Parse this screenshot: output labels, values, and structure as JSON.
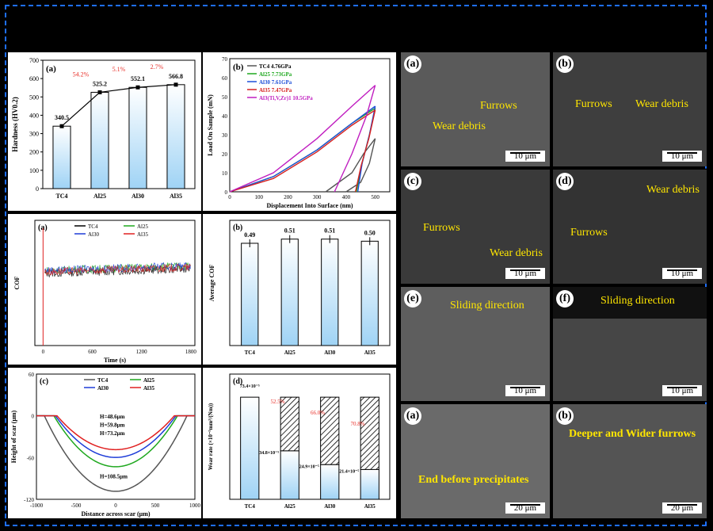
{
  "chart_data": [
    {
      "type": "bar",
      "panel_label": "(a)",
      "ylabel": "Hardness (HV0.2)",
      "categories": [
        "TC4",
        "Al25",
        "Al30",
        "Al35"
      ],
      "values": [
        340.5,
        525.2,
        552.1,
        566.8
      ],
      "value_labels": [
        "340.5",
        "525.2",
        "552.1",
        "566.8"
      ],
      "increase_labels": [
        "54.2%",
        "5.1%",
        "2.7%"
      ],
      "ylim": [
        0,
        700
      ],
      "yticks": [
        0,
        100,
        200,
        300,
        400,
        500,
        600,
        700
      ]
    },
    {
      "type": "line",
      "panel_label": "(b)",
      "xlabel": "Displacement Into Surface (nm)",
      "ylabel": "Load On Sample (mN)",
      "xlim": [
        0,
        550
      ],
      "ylim": [
        0,
        70
      ],
      "xticks": [
        0,
        100,
        200,
        300,
        400,
        500
      ],
      "yticks": [
        0,
        10,
        20,
        30,
        40,
        50,
        60,
        70
      ],
      "series": [
        {
          "name": "TC4  4.76GPa",
          "color": "#555555",
          "loading": [
            [
              400,
              0
            ],
            [
              450,
              5
            ],
            [
              480,
              15
            ],
            [
              500,
              28
            ]
          ],
          "unloading": [
            [
              500,
              28
            ],
            [
              460,
              20
            ],
            [
              420,
              10
            ],
            [
              330,
              0
            ]
          ]
        },
        {
          "name": "Al25  7.73GPa",
          "color": "#1fa81f",
          "loading": [
            [
              0,
              0
            ],
            [
              150,
              8
            ],
            [
              300,
              22
            ],
            [
              420,
              36
            ],
            [
              500,
              44
            ]
          ],
          "unloading": [
            [
              500,
              44
            ],
            [
              480,
              30
            ],
            [
              455,
              15
            ],
            [
              435,
              0
            ]
          ]
        },
        {
          "name": "Al30  7.61GPa",
          "color": "#1e4fd8",
          "loading": [
            [
              0,
              0
            ],
            [
              150,
              8
            ],
            [
              300,
              22
            ],
            [
              420,
              36
            ],
            [
              500,
              45
            ]
          ],
          "unloading": [
            [
              500,
              45
            ],
            [
              480,
              30
            ],
            [
              455,
              15
            ],
            [
              440,
              0
            ]
          ]
        },
        {
          "name": "Al35  7.47GPa",
          "color": "#d62020",
          "loading": [
            [
              0,
              0
            ],
            [
              150,
              7
            ],
            [
              300,
              21
            ],
            [
              420,
              35
            ],
            [
              500,
              43
            ]
          ],
          "unloading": [
            [
              500,
              43
            ],
            [
              478,
              28
            ],
            [
              452,
              14
            ],
            [
              432,
              0
            ]
          ]
        },
        {
          "name": "Al3(Ti,V,Zr)1  10.5GPa",
          "color": "#c01ec0",
          "loading": [
            [
              0,
              0
            ],
            [
              150,
              10
            ],
            [
              300,
              28
            ],
            [
              420,
              45
            ],
            [
              500,
              56
            ]
          ],
          "unloading": [
            [
              500,
              56
            ],
            [
              470,
              40
            ],
            [
              420,
              20
            ],
            [
              360,
              0
            ]
          ]
        }
      ]
    },
    {
      "type": "line",
      "panel_label": "(a)",
      "xlabel": "Time (s)",
      "ylabel": "COF",
      "xlim": [
        -100,
        1850
      ],
      "ylim": [
        0,
        0.8
      ],
      "xticks": [
        0,
        600,
        1200,
        1800
      ],
      "series": [
        {
          "name": "TC4",
          "color": "#000000",
          "mean": 0.49
        },
        {
          "name": "Al25",
          "color": "#1fa81f",
          "mean": 0.51
        },
        {
          "name": "Al30",
          "color": "#1e3cd8",
          "mean": 0.51
        },
        {
          "name": "Al35",
          "color": "#e02020",
          "mean": 0.5
        }
      ]
    },
    {
      "type": "bar",
      "panel_label": "(b)",
      "ylabel": "Average COF",
      "categories": [
        "TC4",
        "Al25",
        "Al30",
        "Al35"
      ],
      "values": [
        0.49,
        0.51,
        0.51,
        0.5
      ],
      "value_labels": [
        "0.49",
        "0.51",
        "0.51",
        "0.50"
      ],
      "ylim": [
        0,
        0.6
      ]
    },
    {
      "type": "line",
      "panel_label": "(c)",
      "xlabel": "Distance across scar (μm)",
      "ylabel": "Height of scar (μm)",
      "xlim": [
        -1000,
        1000
      ],
      "ylim": [
        -120,
        60
      ],
      "xticks": [
        -1000,
        -500,
        0,
        500,
        1000
      ],
      "yticks": [
        -120,
        -60,
        0,
        60
      ],
      "series": [
        {
          "name": "TC4",
          "color": "#555555",
          "depth": 108.5,
          "halfwidth": 900
        },
        {
          "name": "Al25",
          "color": "#1fa81f",
          "depth": 73.2,
          "halfwidth": 780
        },
        {
          "name": "Al30",
          "color": "#1e3cd8",
          "depth": 59.8,
          "halfwidth": 760
        },
        {
          "name": "Al35",
          "color": "#e02020",
          "depth": 48.6,
          "halfwidth": 740
        }
      ],
      "annotations": [
        "H=48.6μm",
        "H=59.8μm",
        "H=73.2μm",
        "H=108.5μm"
      ]
    },
    {
      "type": "bar",
      "panel_label": "(d)",
      "ylabel": "Wear rate (×10⁻⁵mm³/(Nm))",
      "categories": [
        "TC4",
        "Al25",
        "Al30",
        "Al35"
      ],
      "values": [
        73.4,
        34.8,
        24.9,
        21.4
      ],
      "value_labels": [
        "73.4×10⁻⁵",
        "34.8×10⁻⁵",
        "24.9×10⁻⁵",
        "21.4×10⁻⁵"
      ],
      "reduction_labels": [
        "52.5%",
        "66.0%",
        "70.8%"
      ],
      "ylim": [
        0,
        90
      ]
    }
  ],
  "sem_panels": [
    {
      "label": "(a)",
      "texts": [
        "Furrows",
        "Wear debris"
      ],
      "scale": "10 μm"
    },
    {
      "label": "(b)",
      "texts": [
        "Furrows",
        "Wear debris"
      ],
      "scale": "10 μm"
    },
    {
      "label": "(c)",
      "texts": [
        "Furrows",
        "Wear debris"
      ],
      "scale": "10 μm"
    },
    {
      "label": "(d)",
      "texts": [
        "Wear debris",
        "Furrows"
      ],
      "scale": "10 μm"
    },
    {
      "label": "(e)",
      "texts": [
        "Sliding direction"
      ],
      "scale": "10 μm"
    },
    {
      "label": "(f)",
      "texts": [
        "Sliding direction"
      ],
      "scale": "10 μm"
    },
    {
      "label": "(a)",
      "texts": [
        "End before precipitates"
      ],
      "scale": "20 μm"
    },
    {
      "label": "(b)",
      "texts": [
        "Deeper and Wider furrows"
      ],
      "scale": "20 μm"
    }
  ],
  "colors": {
    "frame": "#1e6fff",
    "annotation": "#ffe600",
    "highlight": "#e8302a"
  }
}
